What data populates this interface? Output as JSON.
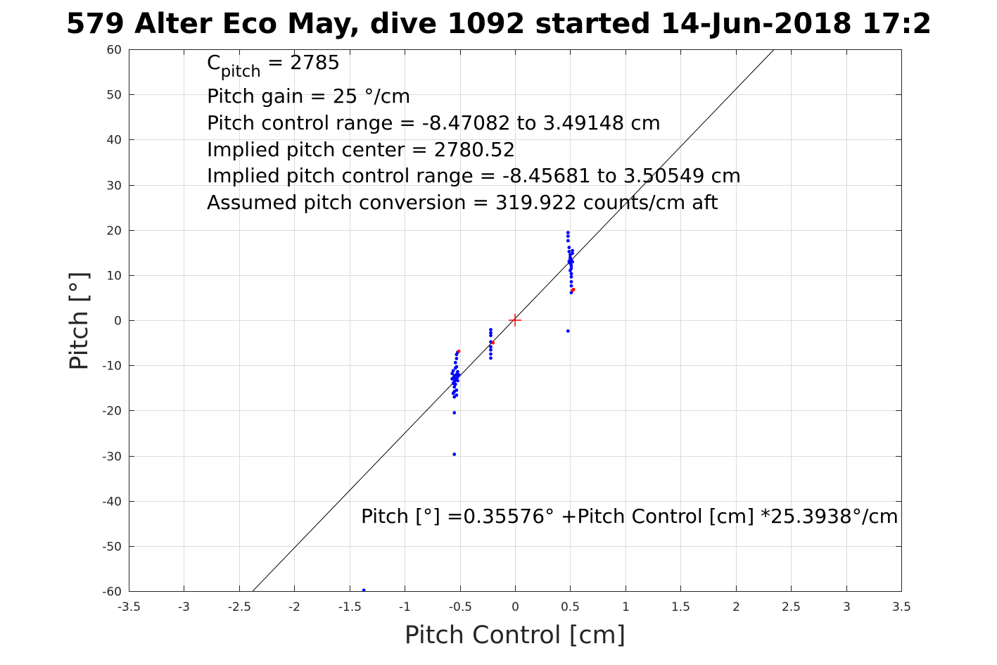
{
  "chart_data": {
    "type": "scatter",
    "title": "579 Alter Eco May, dive 1092 started 14-Jun-2018 17:2",
    "xlabel": "Pitch Control [cm]",
    "ylabel": "Pitch [°]",
    "xlim": [
      -3.5,
      3.5
    ],
    "ylim": [
      -60,
      60
    ],
    "x_ticks": [
      -3.5,
      -3,
      -2.5,
      -2,
      -1.5,
      -1,
      -0.5,
      0,
      0.5,
      1,
      1.5,
      2,
      2.5,
      3,
      3.5
    ],
    "x_tick_labels": [
      "-3.5",
      "-3",
      "-2.5",
      "-2",
      "-1.5",
      "-1",
      "-0.5",
      "0",
      "0.5",
      "1",
      "1.5",
      "2",
      "2.5",
      "3",
      "3.5"
    ],
    "y_ticks": [
      -60,
      -50,
      -40,
      -30,
      -20,
      -10,
      0,
      10,
      20,
      30,
      40,
      50,
      60
    ],
    "y_tick_labels": [
      "-60",
      "-50",
      "-40",
      "-30",
      "-20",
      "-10",
      "0",
      "10",
      "20",
      "30",
      "40",
      "50",
      "60"
    ],
    "grid": true,
    "annotations": {
      "c_pitch_main": "C",
      "c_pitch_sub": "pitch",
      "c_pitch_rest": " = 2785",
      "line2": "Pitch gain = 25 °/cm",
      "line3": "Pitch control range = -8.47082 to 3.49148 cm",
      "line4": "Implied pitch center = 2780.52",
      "line5": "Implied pitch control range = -8.45681 to 3.50549 cm",
      "line6": "Assumed pitch conversion = 319.922 counts/cm aft",
      "fit_equation": "Pitch [°] =0.35576° +Pitch Control [cm] *25.3938°/cm"
    },
    "fit_line": {
      "intercept": 0.35576,
      "slope": 25.3938,
      "color": "#000000"
    },
    "center_marker": {
      "x": 0,
      "y": 0,
      "color": "#ff0000"
    },
    "series": [
      {
        "color": "#0000ff",
        "points": [
          [
            -0.56,
            -11.2
          ],
          [
            -0.57,
            -11.8
          ],
          [
            -0.55,
            -12.3
          ],
          [
            -0.56,
            -12.8
          ],
          [
            -0.54,
            -13.1
          ],
          [
            -0.55,
            -13.6
          ],
          [
            -0.53,
            -12.0
          ],
          [
            -0.52,
            -12.6
          ],
          [
            -0.54,
            -14.2
          ],
          [
            -0.55,
            -14.8
          ],
          [
            -0.53,
            -15.5
          ],
          [
            -0.56,
            -16.2
          ],
          [
            -0.55,
            -17.0
          ],
          [
            -0.53,
            -16.6
          ],
          [
            -0.54,
            -10.6
          ],
          [
            -0.53,
            -10.3
          ],
          [
            -0.52,
            -11.4
          ],
          [
            -0.51,
            -12.1
          ],
          [
            -0.52,
            -13.4
          ],
          [
            -0.54,
            -9.4
          ],
          [
            -0.53,
            -8.5
          ],
          [
            -0.53,
            -7.6
          ],
          [
            -0.52,
            -7.1
          ],
          [
            -0.55,
            -20.5
          ],
          [
            -0.55,
            -29.7
          ],
          [
            -0.57,
            -13.0
          ],
          [
            -0.56,
            -14.0
          ],
          [
            -0.54,
            -12.9
          ],
          [
            -0.55,
            -15.8
          ],
          [
            -0.22,
            -2.1
          ],
          [
            -0.22,
            -2.8
          ],
          [
            -0.22,
            -3.4
          ],
          [
            -0.22,
            -4.8
          ],
          [
            -0.22,
            -5.9
          ],
          [
            -0.22,
            -6.6
          ],
          [
            -0.22,
            -7.5
          ],
          [
            -0.22,
            -8.4
          ],
          [
            0.48,
            19.4
          ],
          [
            0.48,
            18.6
          ],
          [
            0.48,
            17.6
          ],
          [
            0.49,
            16.1
          ],
          [
            0.49,
            15.2
          ],
          [
            0.5,
            14.5
          ],
          [
            0.5,
            13.9
          ],
          [
            0.51,
            13.4
          ],
          [
            0.49,
            13.0
          ],
          [
            0.5,
            12.6
          ],
          [
            0.51,
            12.1
          ],
          [
            0.51,
            11.5
          ],
          [
            0.5,
            11.0
          ],
          [
            0.51,
            10.3
          ],
          [
            0.51,
            9.6
          ],
          [
            0.51,
            8.5
          ],
          [
            0.51,
            7.6
          ],
          [
            0.51,
            6.1
          ],
          [
            0.52,
            14.8
          ],
          [
            0.52,
            15.4
          ],
          [
            0.5,
            13.6
          ],
          [
            0.52,
            12.9
          ],
          [
            0.48,
            -2.4
          ],
          [
            -1.37,
            -59.8
          ]
        ]
      },
      {
        "color": "#ff0000",
        "points": [
          [
            -0.51,
            -6.9
          ],
          [
            -0.2,
            -5.0
          ],
          [
            0.53,
            6.8
          ],
          [
            0.52,
            6.6
          ]
        ]
      }
    ]
  }
}
